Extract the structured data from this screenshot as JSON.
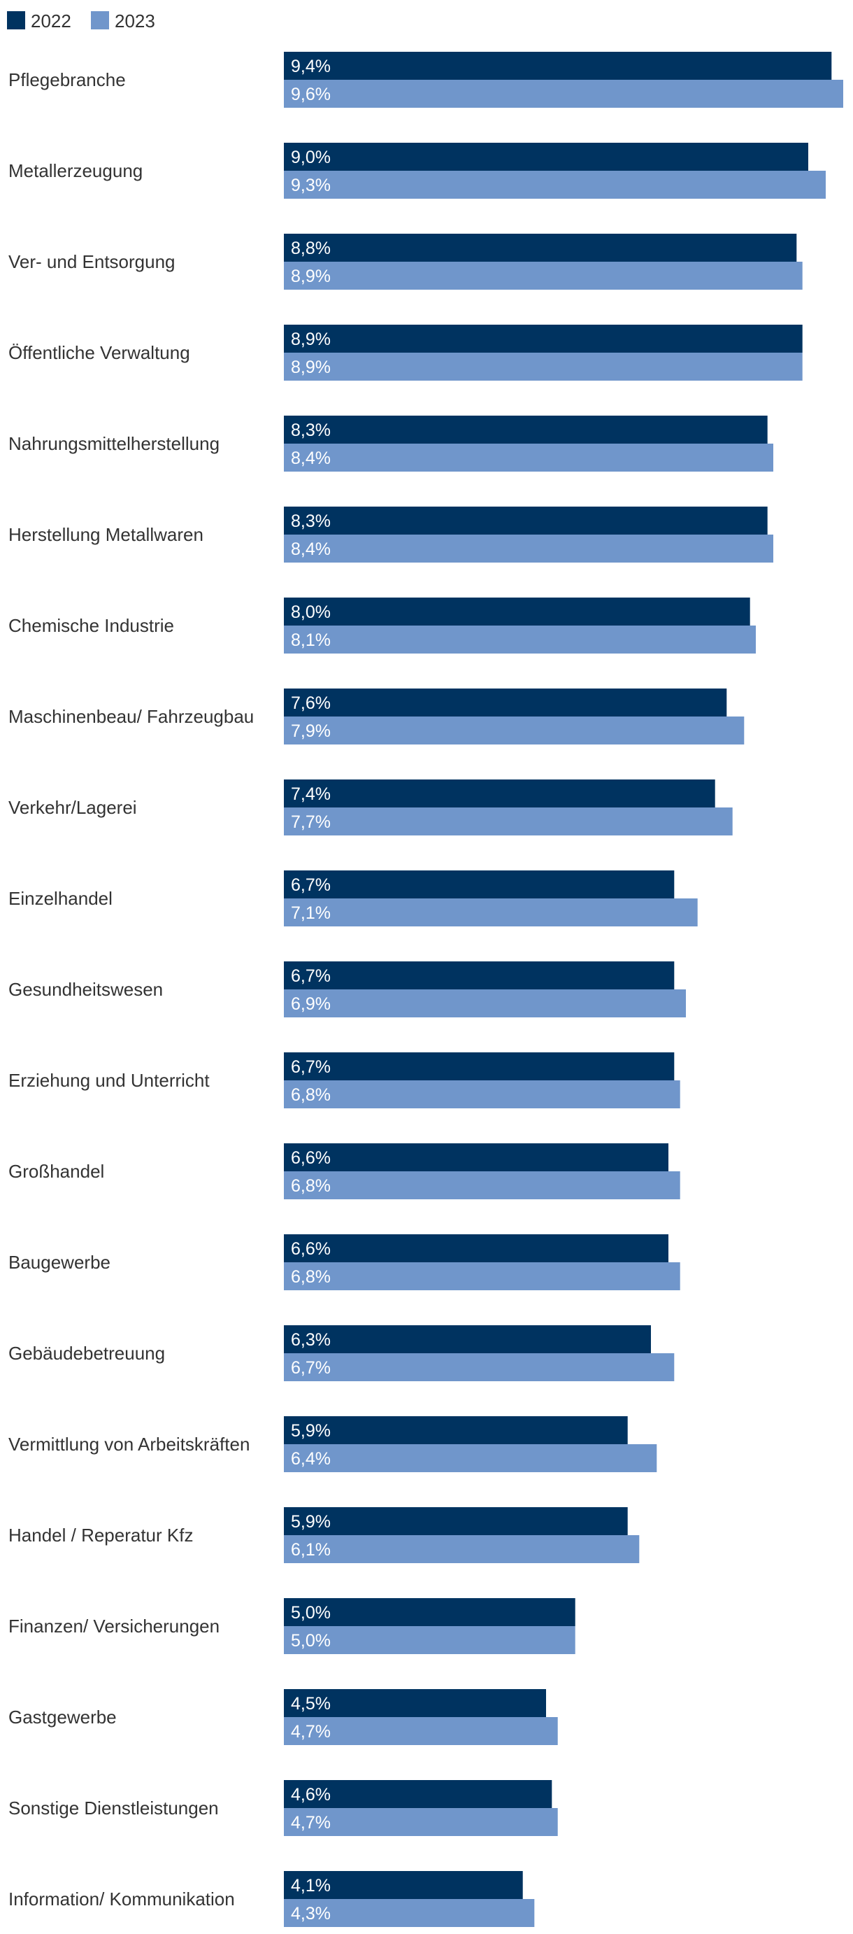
{
  "chart_data": {
    "type": "bar",
    "orientation": "horizontal",
    "title": "",
    "xlabel": "",
    "ylabel": "",
    "xlim": [
      0,
      9.6
    ],
    "grid": false,
    "legend": {
      "placement": "top-left",
      "entries": [
        "2022",
        "2023"
      ]
    },
    "colors": {
      "2022": "#003360",
      "2023": "#7096cb",
      "label_text": "#333333",
      "value_text": "#ffffff"
    },
    "categories": [
      "Pflegebranche",
      "Metallerzeugung",
      "Ver- und Entsorgung",
      "Öffentliche Verwaltung",
      "Nahrungsmittelherstellung",
      "Herstellung Metallwaren",
      "Chemische Industrie",
      "Maschinenbeau/ Fahrzeugbau",
      "Verkehr/Lagerei",
      "Einzelhandel",
      "Gesundheitswesen",
      "Erziehung und Unterricht",
      "Großhandel",
      "Baugewerbe",
      "Gebäudebetreuung",
      "Vermittlung von Arbeitskräften",
      "Handel / Reperatur Kfz",
      "Finanzen/ Versicherungen",
      "Gastgewerbe",
      "Sonstige Dienstleistungen",
      "Information/ Kommunikation"
    ],
    "series": [
      {
        "name": "2022",
        "values": [
          9.4,
          9.0,
          8.8,
          8.9,
          8.3,
          8.3,
          8.0,
          7.6,
          7.4,
          6.7,
          6.7,
          6.7,
          6.6,
          6.6,
          6.3,
          5.9,
          5.9,
          5.0,
          4.5,
          4.6,
          4.1
        ],
        "labels": [
          "9,4%",
          "9,0%",
          "8,8%",
          "8,9%",
          "8,3%",
          "8,3%",
          "8,0%",
          "7,6%",
          "7,4%",
          "6,7%",
          "6,7%",
          "6,7%",
          "6,6%",
          "6,6%",
          "6,3%",
          "5,9%",
          "5,9%",
          "5,0%",
          "4,5%",
          "4,6%",
          "4,1%"
        ]
      },
      {
        "name": "2023",
        "values": [
          9.6,
          9.3,
          8.9,
          8.9,
          8.4,
          8.4,
          8.1,
          7.9,
          7.7,
          7.1,
          6.9,
          6.8,
          6.8,
          6.8,
          6.7,
          6.4,
          6.1,
          5.0,
          4.7,
          4.7,
          4.3
        ],
        "labels": [
          "9,6%",
          "9,3%",
          "8,9%",
          "8,9%",
          "8,4%",
          "8,4%",
          "8,1%",
          "7,9%",
          "7,7%",
          "7,1%",
          "6,9%",
          "6,8%",
          "6,8%",
          "6,8%",
          "6,7%",
          "6,4%",
          "6,1%",
          "5,0%",
          "4,7%",
          "4,7%",
          "4,3%"
        ]
      }
    ]
  }
}
